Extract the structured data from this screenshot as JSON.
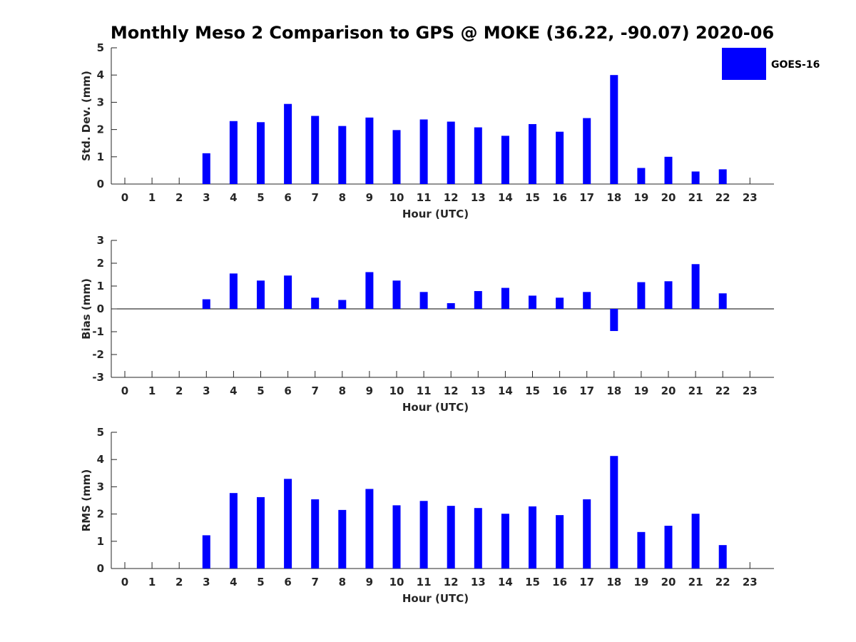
{
  "title": "Monthly Meso 2 Comparison to GPS @ MOKE (36.22, -90.07) 2020-06",
  "legend": {
    "label": "GOES-16",
    "color": "#0000ff",
    "placement": "top-right"
  },
  "chart_data": [
    {
      "type": "bar",
      "xlabel": "Hour (UTC)",
      "ylabel": "Std. Dev. (mm)",
      "ylim": [
        0,
        5
      ],
      "yticks": [
        0,
        1,
        2,
        3,
        4,
        5
      ],
      "categories": [
        "0",
        "1",
        "2",
        "3",
        "4",
        "5",
        "6",
        "7",
        "8",
        "9",
        "10",
        "11",
        "12",
        "13",
        "14",
        "15",
        "16",
        "17",
        "18",
        "19",
        "20",
        "21",
        "22",
        "23"
      ],
      "values": [
        null,
        null,
        null,
        1.13,
        2.31,
        2.27,
        2.94,
        2.5,
        2.13,
        2.44,
        1.98,
        2.37,
        2.29,
        2.08,
        1.77,
        2.2,
        1.92,
        2.42,
        4.0,
        0.59,
        1.0,
        0.46,
        0.54,
        null
      ],
      "color": "#0000ff",
      "grid": false
    },
    {
      "type": "bar",
      "xlabel": "Hour (UTC)",
      "ylabel": "Bias (mm)",
      "ylim": [
        -3,
        3
      ],
      "yticks": [
        -3,
        -2,
        -1,
        0,
        1,
        2,
        3
      ],
      "categories": [
        "0",
        "1",
        "2",
        "3",
        "4",
        "5",
        "6",
        "7",
        "8",
        "9",
        "10",
        "11",
        "12",
        "13",
        "14",
        "15",
        "16",
        "17",
        "18",
        "19",
        "20",
        "21",
        "22",
        "23"
      ],
      "values": [
        null,
        null,
        null,
        0.42,
        1.55,
        1.24,
        1.46,
        0.49,
        0.39,
        1.61,
        1.24,
        0.74,
        0.25,
        0.78,
        0.92,
        0.58,
        0.49,
        0.74,
        -0.97,
        1.17,
        1.21,
        1.96,
        0.68,
        null
      ],
      "color": "#0000ff",
      "zero_line": true,
      "grid": false
    },
    {
      "type": "bar",
      "xlabel": "Hour (UTC)",
      "ylabel": "RMS (mm)",
      "ylim": [
        0,
        5
      ],
      "yticks": [
        0,
        1,
        2,
        3,
        4,
        5
      ],
      "categories": [
        "0",
        "1",
        "2",
        "3",
        "4",
        "5",
        "6",
        "7",
        "8",
        "9",
        "10",
        "11",
        "12",
        "13",
        "14",
        "15",
        "16",
        "17",
        "18",
        "19",
        "20",
        "21",
        "22",
        "23"
      ],
      "values": [
        null,
        null,
        null,
        1.22,
        2.77,
        2.62,
        3.29,
        2.54,
        2.15,
        2.92,
        2.32,
        2.48,
        2.3,
        2.22,
        2.01,
        2.28,
        1.96,
        2.54,
        4.13,
        1.34,
        1.57,
        2.01,
        0.86,
        null
      ],
      "color": "#0000ff",
      "grid": false
    }
  ]
}
